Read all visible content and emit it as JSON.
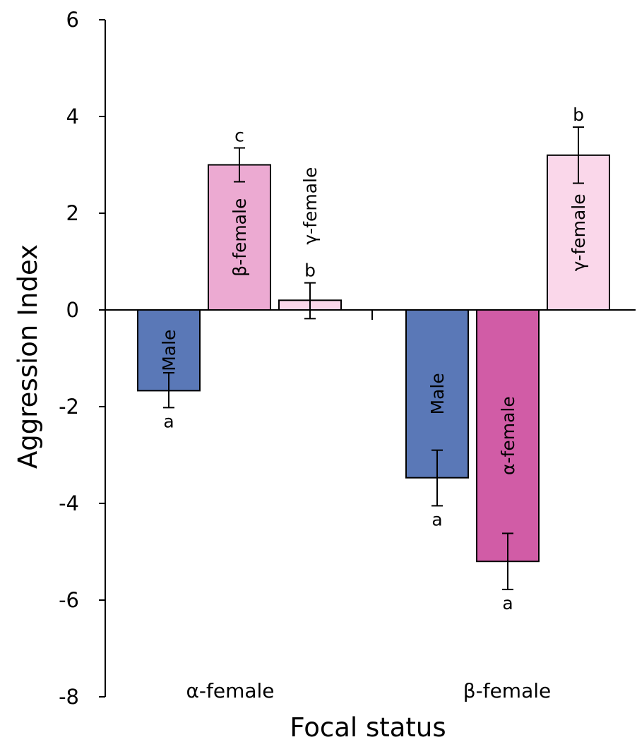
{
  "chart_data": {
    "type": "bar",
    "title": "",
    "xlabel": "Focal status",
    "ylabel": "Aggression Index",
    "ylim": [
      -8,
      6
    ],
    "yticks": [
      6,
      4,
      2,
      0,
      -2,
      -4,
      -6,
      -8
    ],
    "grid": false,
    "legend": "none",
    "categories": [
      "α-female",
      "β-female"
    ],
    "groups": [
      {
        "category": "α-female",
        "bars": [
          {
            "name": "Male",
            "value": -1.67,
            "err_low": -2.02,
            "err_high": -1.3,
            "sig": "a",
            "color": "#5a78b7"
          },
          {
            "name": "β-female",
            "value": 3.0,
            "err_low": 2.65,
            "err_high": 3.35,
            "sig": "c",
            "color": "#ecaad2"
          },
          {
            "name": "γ-female",
            "value": 0.2,
            "err_low": -0.18,
            "err_high": 0.56,
            "sig": "b",
            "color": "#fad7ea"
          }
        ]
      },
      {
        "category": "β-female",
        "bars": [
          {
            "name": "Male",
            "value": -3.47,
            "err_low": -4.05,
            "err_high": -2.9,
            "sig": "a",
            "color": "#5a78b7"
          },
          {
            "name": "α-female",
            "value": -5.2,
            "err_low": -5.78,
            "err_high": -4.62,
            "sig": "a",
            "color": "#d15ca6"
          },
          {
            "name": "γ-female",
            "value": 3.2,
            "err_low": 2.62,
            "err_high": 3.78,
            "sig": "b",
            "color": "#fad7ea"
          }
        ]
      }
    ]
  }
}
